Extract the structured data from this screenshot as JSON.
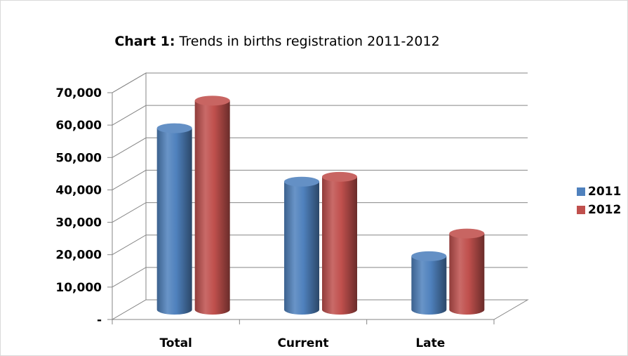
{
  "chart_data": {
    "type": "bar",
    "title_bold": "Chart 1:",
    "title_rest": " Trends in births registration 2011-2012",
    "categories": [
      "Total",
      "Current",
      "Late"
    ],
    "series": [
      {
        "name": "2011",
        "values": [
          56000,
          39500,
          16500
        ],
        "color": "#4f81bd"
      },
      {
        "name": "2012",
        "values": [
          64500,
          41000,
          23500
        ],
        "color": "#c0504d"
      }
    ],
    "ylim": [
      0,
      70000
    ],
    "ytick_labels": [
      "-",
      "10,000",
      "20,000",
      "30,000",
      "40,000",
      "50,000",
      "60,000",
      "70,000"
    ],
    "grid": true,
    "legend_position": "right"
  }
}
